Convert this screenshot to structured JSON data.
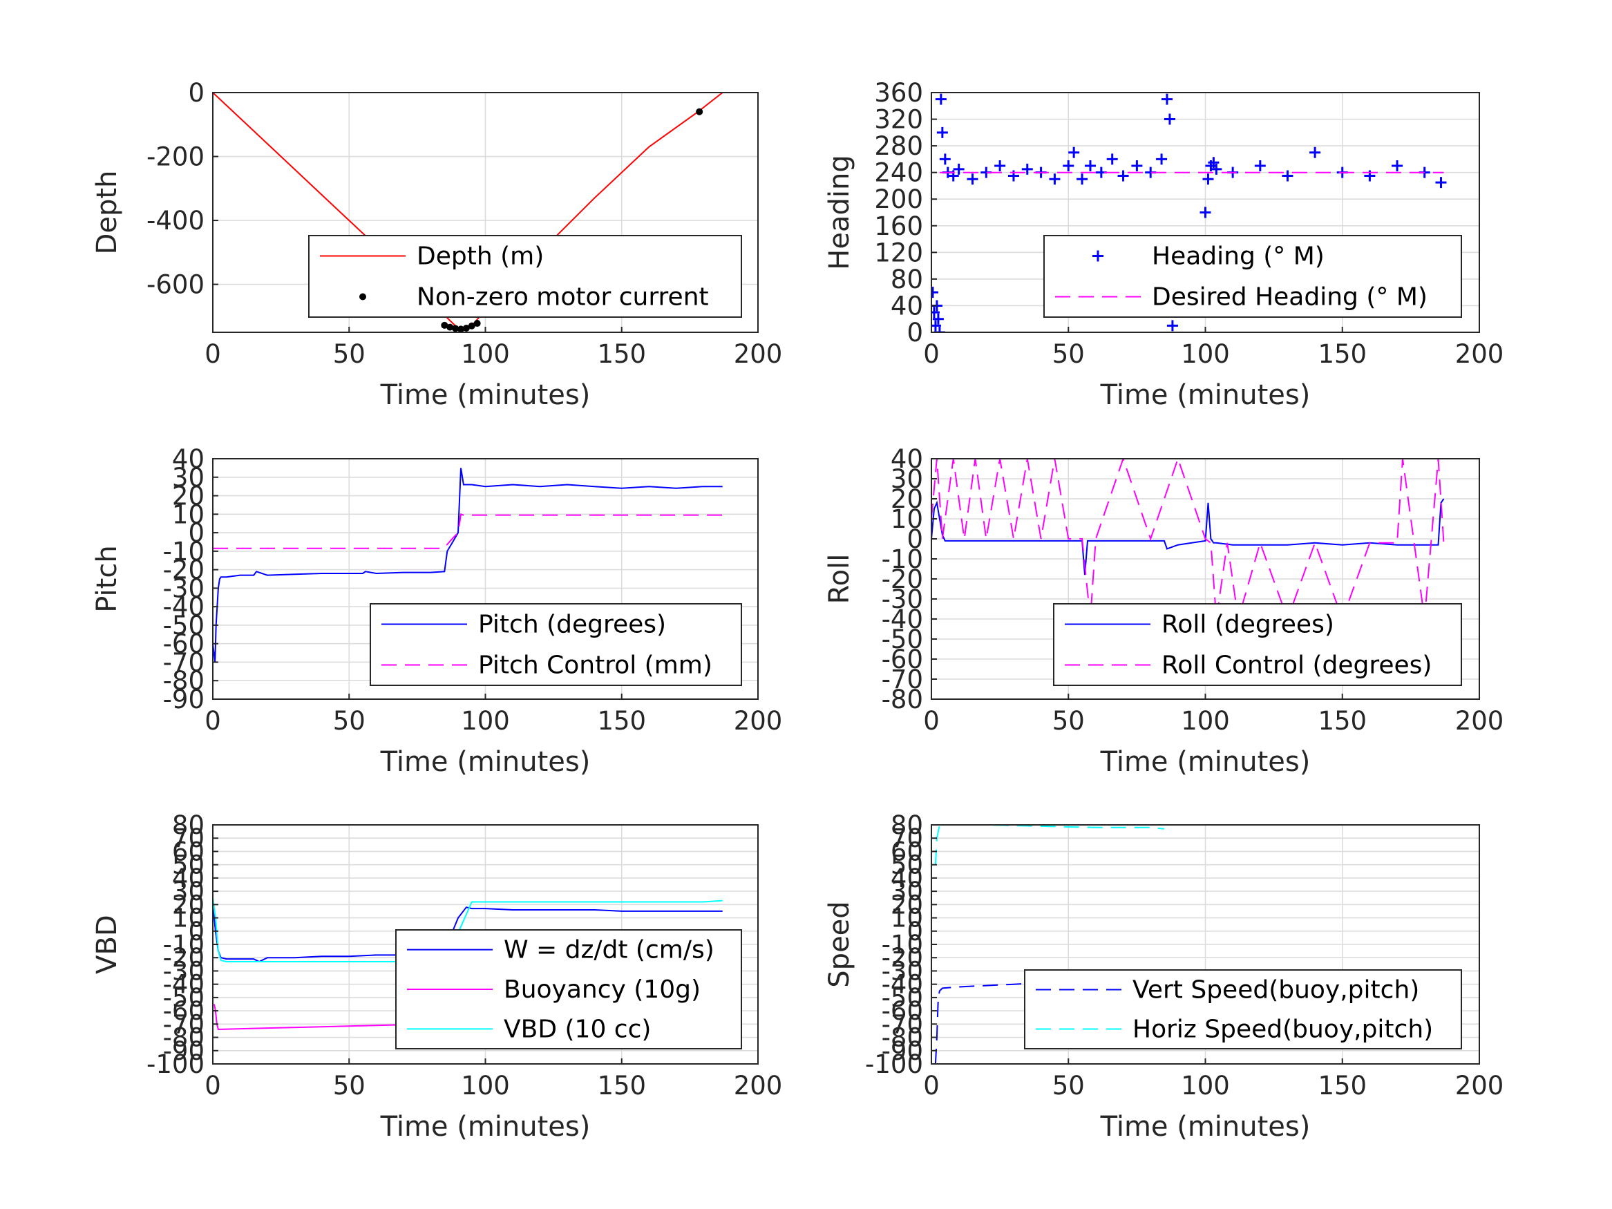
{
  "chart_data": [
    {
      "type": "line",
      "xlabel": "Time (minutes)",
      "ylabel": "Depth",
      "xlim": [
        0,
        200
      ],
      "ylim": [
        -750,
        0
      ],
      "xticks": [
        "0",
        "50",
        "100",
        "150",
        "200"
      ],
      "yticks": [
        "0",
        "-200",
        "-400",
        "-600"
      ],
      "yticks_values": [
        0,
        -200,
        -400,
        -600
      ],
      "grid": true,
      "legend": "bottom-right",
      "series": [
        {
          "name": "Depth (m)",
          "color": "#ff0000",
          "style": "solid",
          "x": [
            0,
            20,
            40,
            60,
            80,
            86,
            90,
            93,
            96,
            100,
            120,
            140,
            160,
            178,
            187
          ],
          "y": [
            0,
            -160,
            -320,
            -480,
            -640,
            -705,
            -738,
            -740,
            -720,
            -680,
            -500,
            -330,
            -170,
            -60,
            0
          ]
        },
        {
          "name": "Non-zero motor current",
          "color": "#000000",
          "style": "dots",
          "x": [
            85,
            87,
            89,
            91,
            93,
            95,
            97,
            178.5
          ],
          "y": [
            -728,
            -734,
            -738,
            -740,
            -737,
            -730,
            -722,
            -60
          ]
        }
      ]
    },
    {
      "type": "scatter",
      "xlabel": "Time (minutes)",
      "ylabel": "Heading",
      "xlim": [
        0,
        200
      ],
      "ylim": [
        0,
        360
      ],
      "xticks": [
        "0",
        "50",
        "100",
        "150",
        "200"
      ],
      "yticks": [
        "0",
        "40",
        "80",
        "120",
        "160",
        "200",
        "240",
        "280",
        "320",
        "360"
      ],
      "yticks_values": [
        0,
        40,
        80,
        120,
        160,
        200,
        240,
        280,
        320,
        360
      ],
      "grid": true,
      "legend": "bottom-right",
      "series": [
        {
          "name": "Heading (° M)",
          "color": "#0000ff",
          "style": "plus",
          "x": [
            0.5,
            1,
            1.5,
            2,
            2.5,
            3,
            3.5,
            4,
            5,
            6,
            8,
            10,
            15,
            20,
            25,
            30,
            35,
            40,
            45,
            50,
            52,
            55,
            58,
            62,
            66,
            70,
            75,
            80,
            84,
            86,
            87,
            88,
            89,
            90,
            92,
            94,
            96,
            98,
            100,
            101,
            102,
            103,
            104,
            110,
            120,
            130,
            140,
            150,
            160,
            170,
            180,
            186
          ],
          "y": [
            60,
            30,
            10,
            40,
            20,
            0,
            350,
            300,
            260,
            240,
            235,
            245,
            230,
            240,
            250,
            235,
            245,
            240,
            230,
            250,
            270,
            230,
            250,
            240,
            260,
            235,
            250,
            240,
            260,
            350,
            320,
            10,
            60,
            80,
            70,
            60,
            80,
            100,
            180,
            230,
            250,
            255,
            245,
            240,
            250,
            235,
            270,
            240,
            235,
            250,
            240,
            225
          ]
        },
        {
          "name": "Desired Heading (° M)",
          "color": "#ff00ff",
          "style": "dashed",
          "x": [
            3,
            187
          ],
          "y": [
            240,
            240
          ]
        }
      ]
    },
    {
      "type": "line",
      "xlabel": "Time (minutes)",
      "ylabel": "Pitch",
      "xlim": [
        0,
        200
      ],
      "ylim": [
        -90,
        40
      ],
      "xticks": [
        "0",
        "50",
        "100",
        "150",
        "200"
      ],
      "yticks": [
        "40",
        "30",
        "20",
        "10",
        "0",
        "-10",
        "-20",
        "-30",
        "-40",
        "-50",
        "-60",
        "-70",
        "-80",
        "-90"
      ],
      "yticks_values": [
        40,
        30,
        20,
        10,
        0,
        -10,
        -20,
        -30,
        -40,
        -50,
        -60,
        -70,
        -80,
        -90
      ],
      "grid": true,
      "legend": "bottom-right",
      "series": [
        {
          "name": "Pitch (degrees)",
          "color": "#0000ff",
          "style": "solid",
          "x": [
            0,
            0.8,
            1.2,
            1.6,
            2,
            2.5,
            3,
            5,
            10,
            15,
            16,
            20,
            30,
            40,
            50,
            55,
            56,
            60,
            70,
            80,
            85,
            86,
            88,
            90,
            91,
            92,
            95,
            100,
            110,
            120,
            130,
            140,
            150,
            160,
            170,
            180,
            187
          ],
          "y": [
            -60,
            -70,
            -50,
            -40,
            -30,
            -25,
            -24,
            -24,
            -23,
            -23,
            -21,
            -23,
            -22.5,
            -22,
            -22,
            -22,
            -21,
            -22,
            -21.5,
            -21.5,
            -21,
            -10,
            -5,
            0,
            35,
            26,
            26,
            25,
            26,
            25,
            26,
            25,
            24,
            25,
            24,
            25,
            25
          ]
        },
        {
          "name": "Pitch Control (mm)",
          "color": "#ff00ff",
          "style": "dashed",
          "x": [
            0,
            84,
            85,
            88,
            90,
            91,
            92,
            187
          ],
          "y": [
            -8.5,
            -8.5,
            -8,
            -3,
            0,
            10,
            9.5,
            9.5
          ]
        }
      ]
    },
    {
      "type": "line",
      "xlabel": "Time (minutes)",
      "ylabel": "Roll",
      "xlim": [
        0,
        200
      ],
      "ylim": [
        -80,
        40
      ],
      "xticks": [
        "0",
        "50",
        "100",
        "150",
        "200"
      ],
      "yticks": [
        "40",
        "30",
        "20",
        "10",
        "0",
        "-10",
        "-20",
        "-30",
        "-40",
        "-50",
        "-60",
        "-70",
        "-80"
      ],
      "yticks_values": [
        40,
        30,
        20,
        10,
        0,
        -10,
        -20,
        -30,
        -40,
        -50,
        -60,
        -70,
        -80
      ],
      "grid": true,
      "legend": "bottom-right",
      "series": [
        {
          "name": "Roll (degrees)",
          "color": "#0000ff",
          "style": "solid",
          "x": [
            0,
            1,
            2,
            3,
            4,
            5,
            10,
            20,
            30,
            40,
            55,
            56,
            57,
            58,
            60,
            70,
            80,
            85,
            86,
            90,
            95,
            100,
            101,
            102,
            103,
            104,
            110,
            120,
            130,
            140,
            150,
            160,
            170,
            180,
            185,
            186,
            187
          ],
          "y": [
            0,
            15,
            18,
            10,
            2,
            -1,
            -1,
            -1,
            -1,
            -1,
            -1,
            -18,
            -1,
            -1,
            -1,
            -1,
            -1,
            -1,
            -5,
            -3,
            -2,
            -1,
            18,
            0,
            -2,
            -2,
            -3,
            -3,
            -3,
            -2,
            -3,
            -2,
            -3,
            -3,
            -3,
            18,
            20
          ]
        },
        {
          "name": "Roll Control (degrees)",
          "color": "#ff00ff",
          "style": "dashed",
          "x": [
            0,
            2,
            4,
            8,
            12,
            16,
            20,
            25,
            30,
            35,
            40,
            45,
            50,
            55,
            58,
            60,
            70,
            80,
            90,
            100,
            102,
            104,
            108,
            112,
            120,
            130,
            140,
            150,
            160,
            170,
            172,
            180,
            185,
            187
          ],
          "y": [
            10,
            40,
            0,
            40,
            0,
            40,
            0,
            40,
            0,
            40,
            0,
            40,
            0,
            0,
            -40,
            0,
            40,
            0,
            40,
            0,
            -2,
            -40,
            -2,
            -40,
            -2,
            -40,
            -2,
            -40,
            -2,
            -2,
            40,
            -40,
            40,
            -2
          ]
        }
      ]
    },
    {
      "type": "line",
      "xlabel": "Time (minutes)",
      "ylabel": "VBD",
      "xlim": [
        0,
        200
      ],
      "ylim": [
        -100,
        80
      ],
      "xticks": [
        "0",
        "50",
        "100",
        "150",
        "200"
      ],
      "yticks": [
        "80",
        "70",
        "60",
        "50",
        "40",
        "30",
        "20",
        "10",
        "0",
        "-10",
        "-20",
        "-30",
        "-40",
        "-50",
        "-60",
        "-70",
        "-80",
        "-90",
        "-100"
      ],
      "yticks_values": [
        80,
        70,
        60,
        50,
        40,
        30,
        20,
        10,
        0,
        -10,
        -20,
        -30,
        -40,
        -50,
        -60,
        -70,
        -80,
        -90,
        -100
      ],
      "grid": true,
      "legend": "bottom-right",
      "series": [
        {
          "name": "W = dz/dt (cm/s)",
          "color": "#0000ff",
          "style": "solid",
          "x": [
            0,
            1,
            2,
            3,
            5,
            10,
            15,
            17,
            20,
            30,
            40,
            50,
            60,
            70,
            80,
            85,
            86,
            88,
            90,
            93,
            95,
            100,
            110,
            120,
            130,
            140,
            150,
            160,
            170,
            180,
            187
          ],
          "y": [
            20,
            0,
            -15,
            -20,
            -21,
            -21,
            -21,
            -23,
            -20,
            -20,
            -19,
            -19,
            -18,
            -18,
            -18,
            -17,
            -10,
            0,
            10,
            18,
            17,
            17,
            16,
            16,
            16,
            16,
            15,
            15,
            15,
            15,
            15
          ]
        },
        {
          "name": "Buoyancy (10g)",
          "color": "#ff00ff",
          "style": "solid",
          "x": [
            0.5,
            1,
            1.5,
            2,
            20,
            40,
            60,
            80,
            86
          ],
          "y": [
            -55,
            -60,
            -70,
            -74,
            -73,
            -72,
            -71,
            -70,
            -70
          ]
        },
        {
          "name": "VBD (10 cc)",
          "color": "#00ffff",
          "style": "solid",
          "x": [
            0,
            1,
            2,
            3,
            5,
            20,
            40,
            60,
            80,
            85,
            86,
            95,
            100,
            150,
            180,
            187
          ],
          "y": [
            25,
            10,
            -15,
            -22,
            -23,
            -23,
            -23,
            -23,
            -23,
            -23,
            -20,
            22,
            22,
            22,
            22,
            23
          ]
        }
      ]
    },
    {
      "type": "line",
      "xlabel": "Time (minutes)",
      "ylabel": "Speed",
      "xlim": [
        0,
        200
      ],
      "ylim": [
        -100,
        80
      ],
      "xticks": [
        "0",
        "50",
        "100",
        "150",
        "200"
      ],
      "yticks": [
        "80",
        "70",
        "60",
        "50",
        "40",
        "30",
        "20",
        "10",
        "0",
        "-10",
        "-20",
        "-30",
        "-40",
        "-50",
        "-60",
        "-70",
        "-80",
        "-90",
        "-100"
      ],
      "yticks_values": [
        80,
        70,
        60,
        50,
        40,
        30,
        20,
        10,
        0,
        -10,
        -20,
        -30,
        -40,
        -50,
        -60,
        -70,
        -80,
        -90,
        -100
      ],
      "grid": true,
      "legend": "bottom-right",
      "series": [
        {
          "name": "Vert Speed(buoy,pitch)",
          "color": "#0000ff",
          "style": "dashed",
          "x": [
            1.5,
            2,
            2.5,
            3,
            4,
            10,
            20,
            30,
            40,
            50,
            60,
            70,
            80,
            85
          ],
          "y": [
            -100,
            -80,
            -50,
            -45,
            -43,
            -42,
            -41,
            -40,
            -39,
            -38,
            -37,
            -37,
            -36,
            -36
          ]
        },
        {
          "name": "Horiz Speed(buoy,pitch)",
          "color": "#00ffff",
          "style": "dashed",
          "x": [
            1.5,
            2,
            3,
            5,
            10,
            20,
            40,
            60,
            80,
            85
          ],
          "y": [
            50,
            70,
            80,
            80,
            80,
            80,
            79,
            78,
            78,
            77
          ]
        }
      ]
    }
  ]
}
